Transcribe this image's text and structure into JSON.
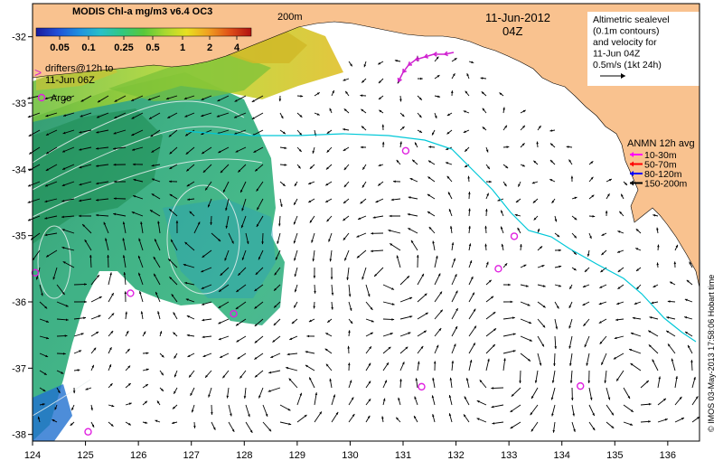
{
  "colorbar": {
    "title": "MODIS Chl-a mg/m3 v6.4 OC3",
    "ticks": [
      "0.05",
      "0.1",
      "0.25",
      "0.5",
      "1",
      "2",
      "4"
    ],
    "colors": [
      "#1a1a9c",
      "#2050d8",
      "#1e90e0",
      "#28c0c8",
      "#30c880",
      "#58c83a",
      "#a8d830",
      "#e8e020",
      "#f0a020",
      "#e05018",
      "#b01010"
    ]
  },
  "labels": {
    "isobath": "200m",
    "date": "11-Jun-2012",
    "time": "04Z",
    "drifters_line1": "drifters@12h to",
    "drifters_line2": "11-Jun 06Z",
    "argo": "Argo",
    "credit": "© IMOS 03-May-2013 17:58:06 Hobart time"
  },
  "legend_altimetry": {
    "lines": [
      "Altimetric sealevel",
      "(0.1m contours)",
      "and velocity for",
      "11-Jun 04Z",
      "0.5m/s (1kt 24h)"
    ]
  },
  "legend_anmn": {
    "title": "ANMN 12h avg",
    "items": [
      {
        "label": "10-30m",
        "color": "#ff00ff"
      },
      {
        "label": "50-70m",
        "color": "#ff0000"
      },
      {
        "label": "80-120m",
        "color": "#0000ff"
      },
      {
        "label": "150-200m",
        "color": "#000000"
      }
    ]
  },
  "axes": {
    "x_ticks": [
      "124",
      "125",
      "126",
      "127",
      "128",
      "129",
      "130",
      "131",
      "132",
      "133",
      "134",
      "135",
      "136"
    ],
    "y_ticks": [
      "-32",
      "-33",
      "-34",
      "-35",
      "-36",
      "-37",
      "-38"
    ],
    "lon_range": [
      124,
      136.6
    ],
    "lat_range": [
      -38.1,
      -31.5
    ]
  },
  "colors": {
    "land": "#f9c28f",
    "isobath": "#00c8d8",
    "argo": "#e020e0",
    "drifter": "#d020d0"
  },
  "argo_floats": [
    [
      125.85,
      -35.87
    ],
    [
      127.8,
      -36.18
    ],
    [
      131.05,
      -33.72
    ],
    [
      132.8,
      -35.5
    ],
    [
      133.1,
      -35.01
    ],
    [
      131.35,
      -37.28
    ],
    [
      134.35,
      -37.27
    ],
    [
      125.05,
      -37.96
    ],
    [
      124.05,
      -35.56
    ]
  ]
}
